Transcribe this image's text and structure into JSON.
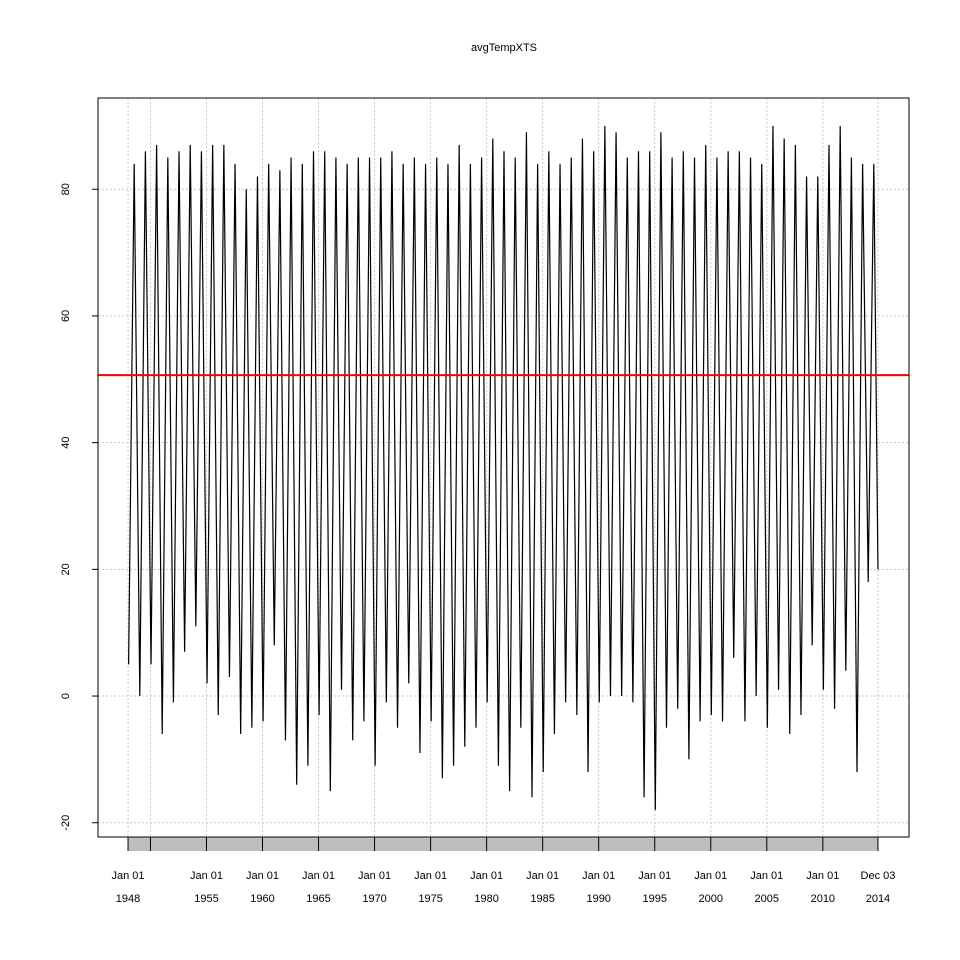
{
  "chart_data": {
    "type": "line",
    "title": "avgTempXTS",
    "x": [
      1948.05,
      1948.55,
      1949.05,
      1949.55,
      1950.05,
      1950.55,
      1951.05,
      1951.55,
      1952.05,
      1952.55,
      1953.05,
      1953.55,
      1954.05,
      1954.55,
      1955.05,
      1955.55,
      1956.05,
      1956.55,
      1957.05,
      1957.55,
      1958.05,
      1958.55,
      1959.05,
      1959.55,
      1960.05,
      1960.55,
      1961.05,
      1961.55,
      1962.05,
      1962.55,
      1963.05,
      1963.55,
      1964.05,
      1964.55,
      1965.05,
      1965.55,
      1966.05,
      1966.55,
      1967.05,
      1967.55,
      1968.05,
      1968.55,
      1969.05,
      1969.55,
      1970.05,
      1970.55,
      1971.05,
      1971.55,
      1972.05,
      1972.55,
      1973.05,
      1973.55,
      1974.05,
      1974.55,
      1975.05,
      1975.55,
      1976.05,
      1976.55,
      1977.05,
      1977.55,
      1978.05,
      1978.55,
      1979.05,
      1979.55,
      1980.05,
      1980.55,
      1981.05,
      1981.55,
      1982.05,
      1982.55,
      1983.05,
      1983.55,
      1984.05,
      1984.55,
      1985.05,
      1985.55,
      1986.05,
      1986.55,
      1987.05,
      1987.55,
      1988.05,
      1988.55,
      1989.05,
      1989.55,
      1990.05,
      1990.55,
      1991.05,
      1991.55,
      1992.05,
      1992.55,
      1993.05,
      1993.55,
      1994.05,
      1994.55,
      1995.05,
      1995.55,
      1996.05,
      1996.55,
      1997.05,
      1997.55,
      1998.05,
      1998.55,
      1999.05,
      1999.55,
      2000.05,
      2000.55,
      2001.05,
      2001.55,
      2002.05,
      2002.55,
      2003.05,
      2003.55,
      2004.05,
      2004.55,
      2005.05,
      2005.55,
      2006.05,
      2006.55,
      2007.05,
      2007.55,
      2008.05,
      2008.55,
      2009.05,
      2009.55,
      2010.05,
      2010.55,
      2011.05,
      2011.55,
      2012.05,
      2012.55,
      2013.05,
      2013.55,
      2014.05,
      2014.55,
      2014.92
    ],
    "series": [
      {
        "name": "avgTempXTS",
        "color": "#000000",
        "values": [
          5,
          84,
          0,
          86,
          5,
          87,
          -6,
          85,
          -1,
          86,
          7,
          87,
          11,
          86,
          2,
          87,
          -3,
          87,
          3,
          84,
          -6,
          80,
          -5,
          82,
          -4,
          84,
          8,
          83,
          -7,
          85,
          -14,
          84,
          -11,
          86,
          -3,
          86,
          -15,
          85,
          1,
          84,
          -7,
          85,
          -4,
          85,
          -11,
          85,
          -1,
          86,
          -5,
          84,
          2,
          85,
          -9,
          84,
          -4,
          85,
          -13,
          84,
          -11,
          87,
          -8,
          84,
          -5,
          85,
          -1,
          88,
          -11,
          86,
          -15,
          85,
          -5,
          89,
          -16,
          84,
          -12,
          86,
          -6,
          84,
          -1,
          85,
          -3,
          88,
          -12,
          86,
          -1,
          90,
          0,
          89,
          0,
          85,
          -1,
          86,
          -16,
          86,
          -18,
          89,
          -5,
          85,
          -2,
          86,
          -10,
          85,
          -4,
          87,
          -3,
          85,
          -4,
          86,
          6,
          86,
          -4,
          85,
          0,
          84,
          -5,
          90,
          1,
          88,
          -6,
          87,
          -3,
          82,
          8,
          82,
          1,
          87,
          -2,
          90,
          4,
          85,
          -12,
          84,
          18,
          84,
          20
        ]
      }
    ],
    "hline": {
      "value": 50.65,
      "color": "#ff0000"
    },
    "xlim": [
      1945.32,
      2017.69
    ],
    "ylim": [
      -22.25,
      94.4
    ],
    "yticks": [
      -20,
      0,
      20,
      40,
      60,
      80
    ],
    "xticks": [
      {
        "value": 1948,
        "label": [
          "Jan 01",
          "1948"
        ]
      },
      {
        "value": 1950,
        "label": null
      },
      {
        "value": 1955,
        "label": [
          "Jan 01",
          "1955"
        ]
      },
      {
        "value": 1960,
        "label": [
          "Jan 01",
          "1960"
        ]
      },
      {
        "value": 1965,
        "label": [
          "Jan 01",
          "1965"
        ]
      },
      {
        "value": 1970,
        "label": [
          "Jan 01",
          "1970"
        ]
      },
      {
        "value": 1975,
        "label": [
          "Jan 01",
          "1975"
        ]
      },
      {
        "value": 1980,
        "label": [
          "Jan 01",
          "1980"
        ]
      },
      {
        "value": 1985,
        "label": [
          "Jan 01",
          "1985"
        ]
      },
      {
        "value": 1990,
        "label": [
          "Jan 01",
          "1990"
        ]
      },
      {
        "value": 1995,
        "label": [
          "Jan 01",
          "1995"
        ]
      },
      {
        "value": 2000,
        "label": [
          "Jan 01",
          "2000"
        ]
      },
      {
        "value": 2005,
        "label": [
          "Jan 01",
          "2005"
        ]
      },
      {
        "value": 2010,
        "label": [
          "Jan 01",
          "2010"
        ]
      },
      {
        "value": 2014.92,
        "label": [
          "Dec 03",
          "2014"
        ]
      }
    ],
    "grid": true
  }
}
